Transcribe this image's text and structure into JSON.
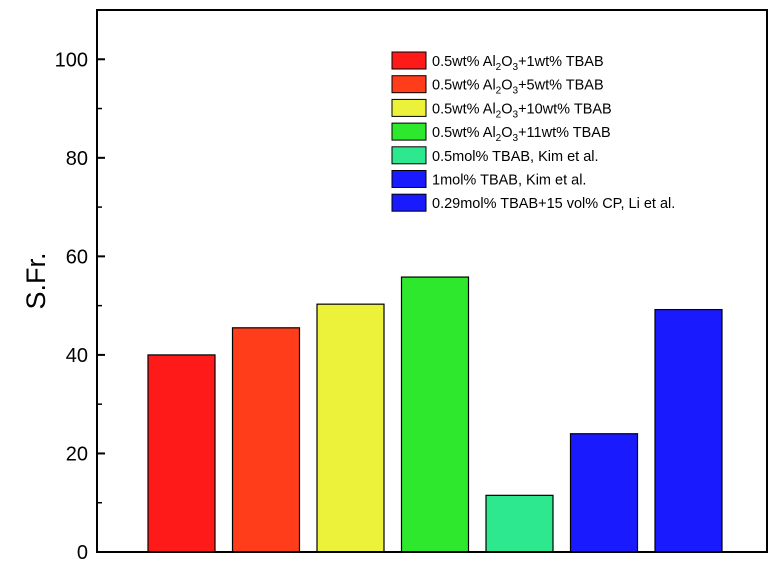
{
  "chart_data": {
    "type": "bar",
    "title": "",
    "xlabel": "",
    "ylabel": "S.Fr.",
    "ylim": [
      0,
      110
    ],
    "yticks": [
      0,
      20,
      40,
      60,
      80,
      100
    ],
    "grid": false,
    "legend_position": "top-right",
    "series": [
      {
        "name": "0.5wt% Al2O3+1wt% TBAB",
        "legend_parts": [
          [
            "0.5wt% Al",
            "n"
          ],
          [
            "2",
            "sub"
          ],
          [
            "O",
            "n"
          ],
          [
            "3",
            "sub"
          ],
          [
            "+1wt% TBAB",
            "n"
          ]
        ],
        "value": 40,
        "color": "#ff1a1a"
      },
      {
        "name": "0.5wt% Al2O3+5wt% TBAB",
        "legend_parts": [
          [
            "0.5wt% Al",
            "n"
          ],
          [
            "2",
            "sub"
          ],
          [
            "O",
            "n"
          ],
          [
            "3",
            "sub"
          ],
          [
            "+5wt% TBAB",
            "n"
          ]
        ],
        "value": 45.5,
        "color": "#ff3d1a"
      },
      {
        "name": "0.5wt% Al2O3+10wt% TBAB",
        "legend_parts": [
          [
            "0.5wt% Al",
            "n"
          ],
          [
            "2",
            "sub"
          ],
          [
            "O",
            "n"
          ],
          [
            "3",
            "sub"
          ],
          [
            "+10wt% TBAB",
            "n"
          ]
        ],
        "value": 50.3,
        "color": "#ecf23a"
      },
      {
        "name": "0.5wt% Al2O3+11wt% TBAB",
        "legend_parts": [
          [
            "0.5wt% Al",
            "n"
          ],
          [
            "2",
            "sub"
          ],
          [
            "O",
            "n"
          ],
          [
            "3",
            "sub"
          ],
          [
            "+11wt% TBAB",
            "n"
          ]
        ],
        "value": 55.8,
        "color": "#2ee82e"
      },
      {
        "name": "0.5mol% TBAB, Kim et al.",
        "legend_parts": [
          [
            "0.5mol% TBAB, Kim et al.",
            "n"
          ]
        ],
        "value": 11.5,
        "color": "#2ee890"
      },
      {
        "name": "1mol% TBAB, Kim et al.",
        "legend_parts": [
          [
            "1mol% TBAB, Kim et al.",
            "n"
          ]
        ],
        "value": 24,
        "color": "#1a1aff"
      },
      {
        "name": "0.29mol% TBAB+15 vol% CP, Li et al.",
        "legend_parts": [
          [
            "0.29mol% TBAB+15 vol% CP, Li et al.",
            "n"
          ]
        ],
        "value": 49.2,
        "color": "#1a1aff"
      }
    ]
  }
}
